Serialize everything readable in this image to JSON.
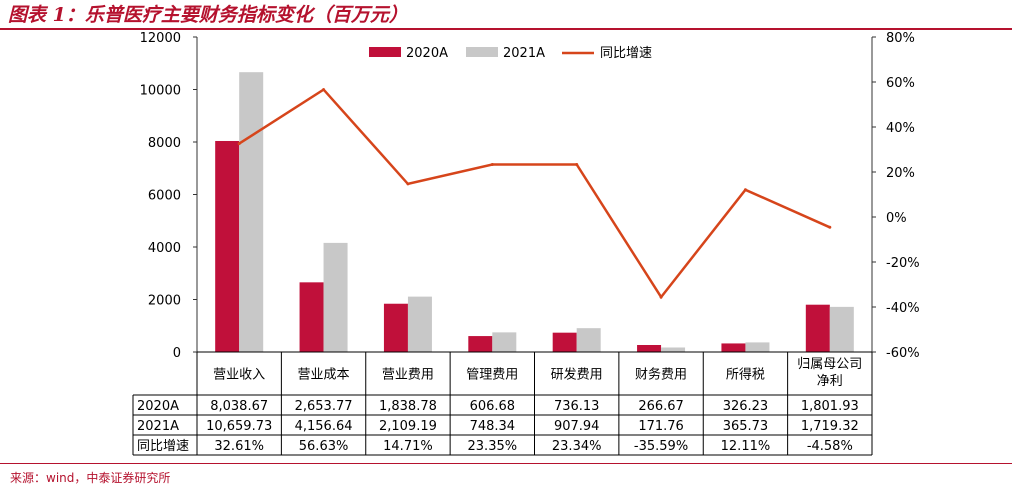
{
  "title": "图表 1：乐普医疗主要财务指标变化（百万元）",
  "source": "来源：wind，中泰证券研究所",
  "colors": {
    "series_2020": "#c0103a",
    "series_2021": "#c8c8c8",
    "growth_line": "#d6451b",
    "title": "#b5122e",
    "axis": "#333333"
  },
  "chart_data": {
    "type": "bar",
    "categories": [
      "营业收入",
      "营业成本",
      "营业费用",
      "管理费用",
      "研发费用",
      "财务费用",
      "所得税",
      "归属母公司净利"
    ],
    "category_lines": [
      [
        "营业收入"
      ],
      [
        "营业成本"
      ],
      [
        "营业费用"
      ],
      [
        "管理费用"
      ],
      [
        "研发费用"
      ],
      [
        "财务费用"
      ],
      [
        "所得税"
      ],
      [
        "归属母公司",
        "净利"
      ]
    ],
    "series": [
      {
        "name": "2020A",
        "type": "bar",
        "axis": "left",
        "values": [
          8038.67,
          2653.77,
          1838.78,
          606.68,
          736.13,
          266.67,
          326.23,
          1801.93
        ]
      },
      {
        "name": "2021A",
        "type": "bar",
        "axis": "left",
        "values": [
          10659.73,
          4156.64,
          2109.19,
          748.34,
          907.94,
          171.76,
          365.73,
          1719.32
        ]
      },
      {
        "name": "同比增速",
        "type": "line",
        "axis": "right",
        "values": [
          32.61,
          56.63,
          14.71,
          23.35,
          23.34,
          -35.59,
          12.11,
          -4.58
        ]
      }
    ],
    "left_axis": {
      "min": 0,
      "max": 12000,
      "ticks": [
        "0",
        "2000",
        "4000",
        "6000",
        "8000",
        "10000",
        "12000"
      ]
    },
    "right_axis": {
      "min": -60,
      "max": 80,
      "unit": "%",
      "ticks": [
        "-60%",
        "-40%",
        "-20%",
        "0%",
        "20%",
        "40%",
        "60%",
        "80%"
      ]
    },
    "legend_position": "top-center",
    "grid": false,
    "data_table": {
      "rows": [
        {
          "label": "2020A",
          "cells": [
            "8,038.67",
            "2,653.77",
            "1,838.78",
            "606.68",
            "736.13",
            "266.67",
            "326.23",
            "1,801.93"
          ]
        },
        {
          "label": "2021A",
          "cells": [
            "10,659.73",
            "4,156.64",
            "2,109.19",
            "748.34",
            "907.94",
            "171.76",
            "365.73",
            "1,719.32"
          ]
        },
        {
          "label": "同比增速",
          "cells": [
            "32.61%",
            "56.63%",
            "14.71%",
            "23.35%",
            "23.34%",
            "-35.59%",
            "12.11%",
            "-4.58%"
          ]
        }
      ]
    }
  }
}
